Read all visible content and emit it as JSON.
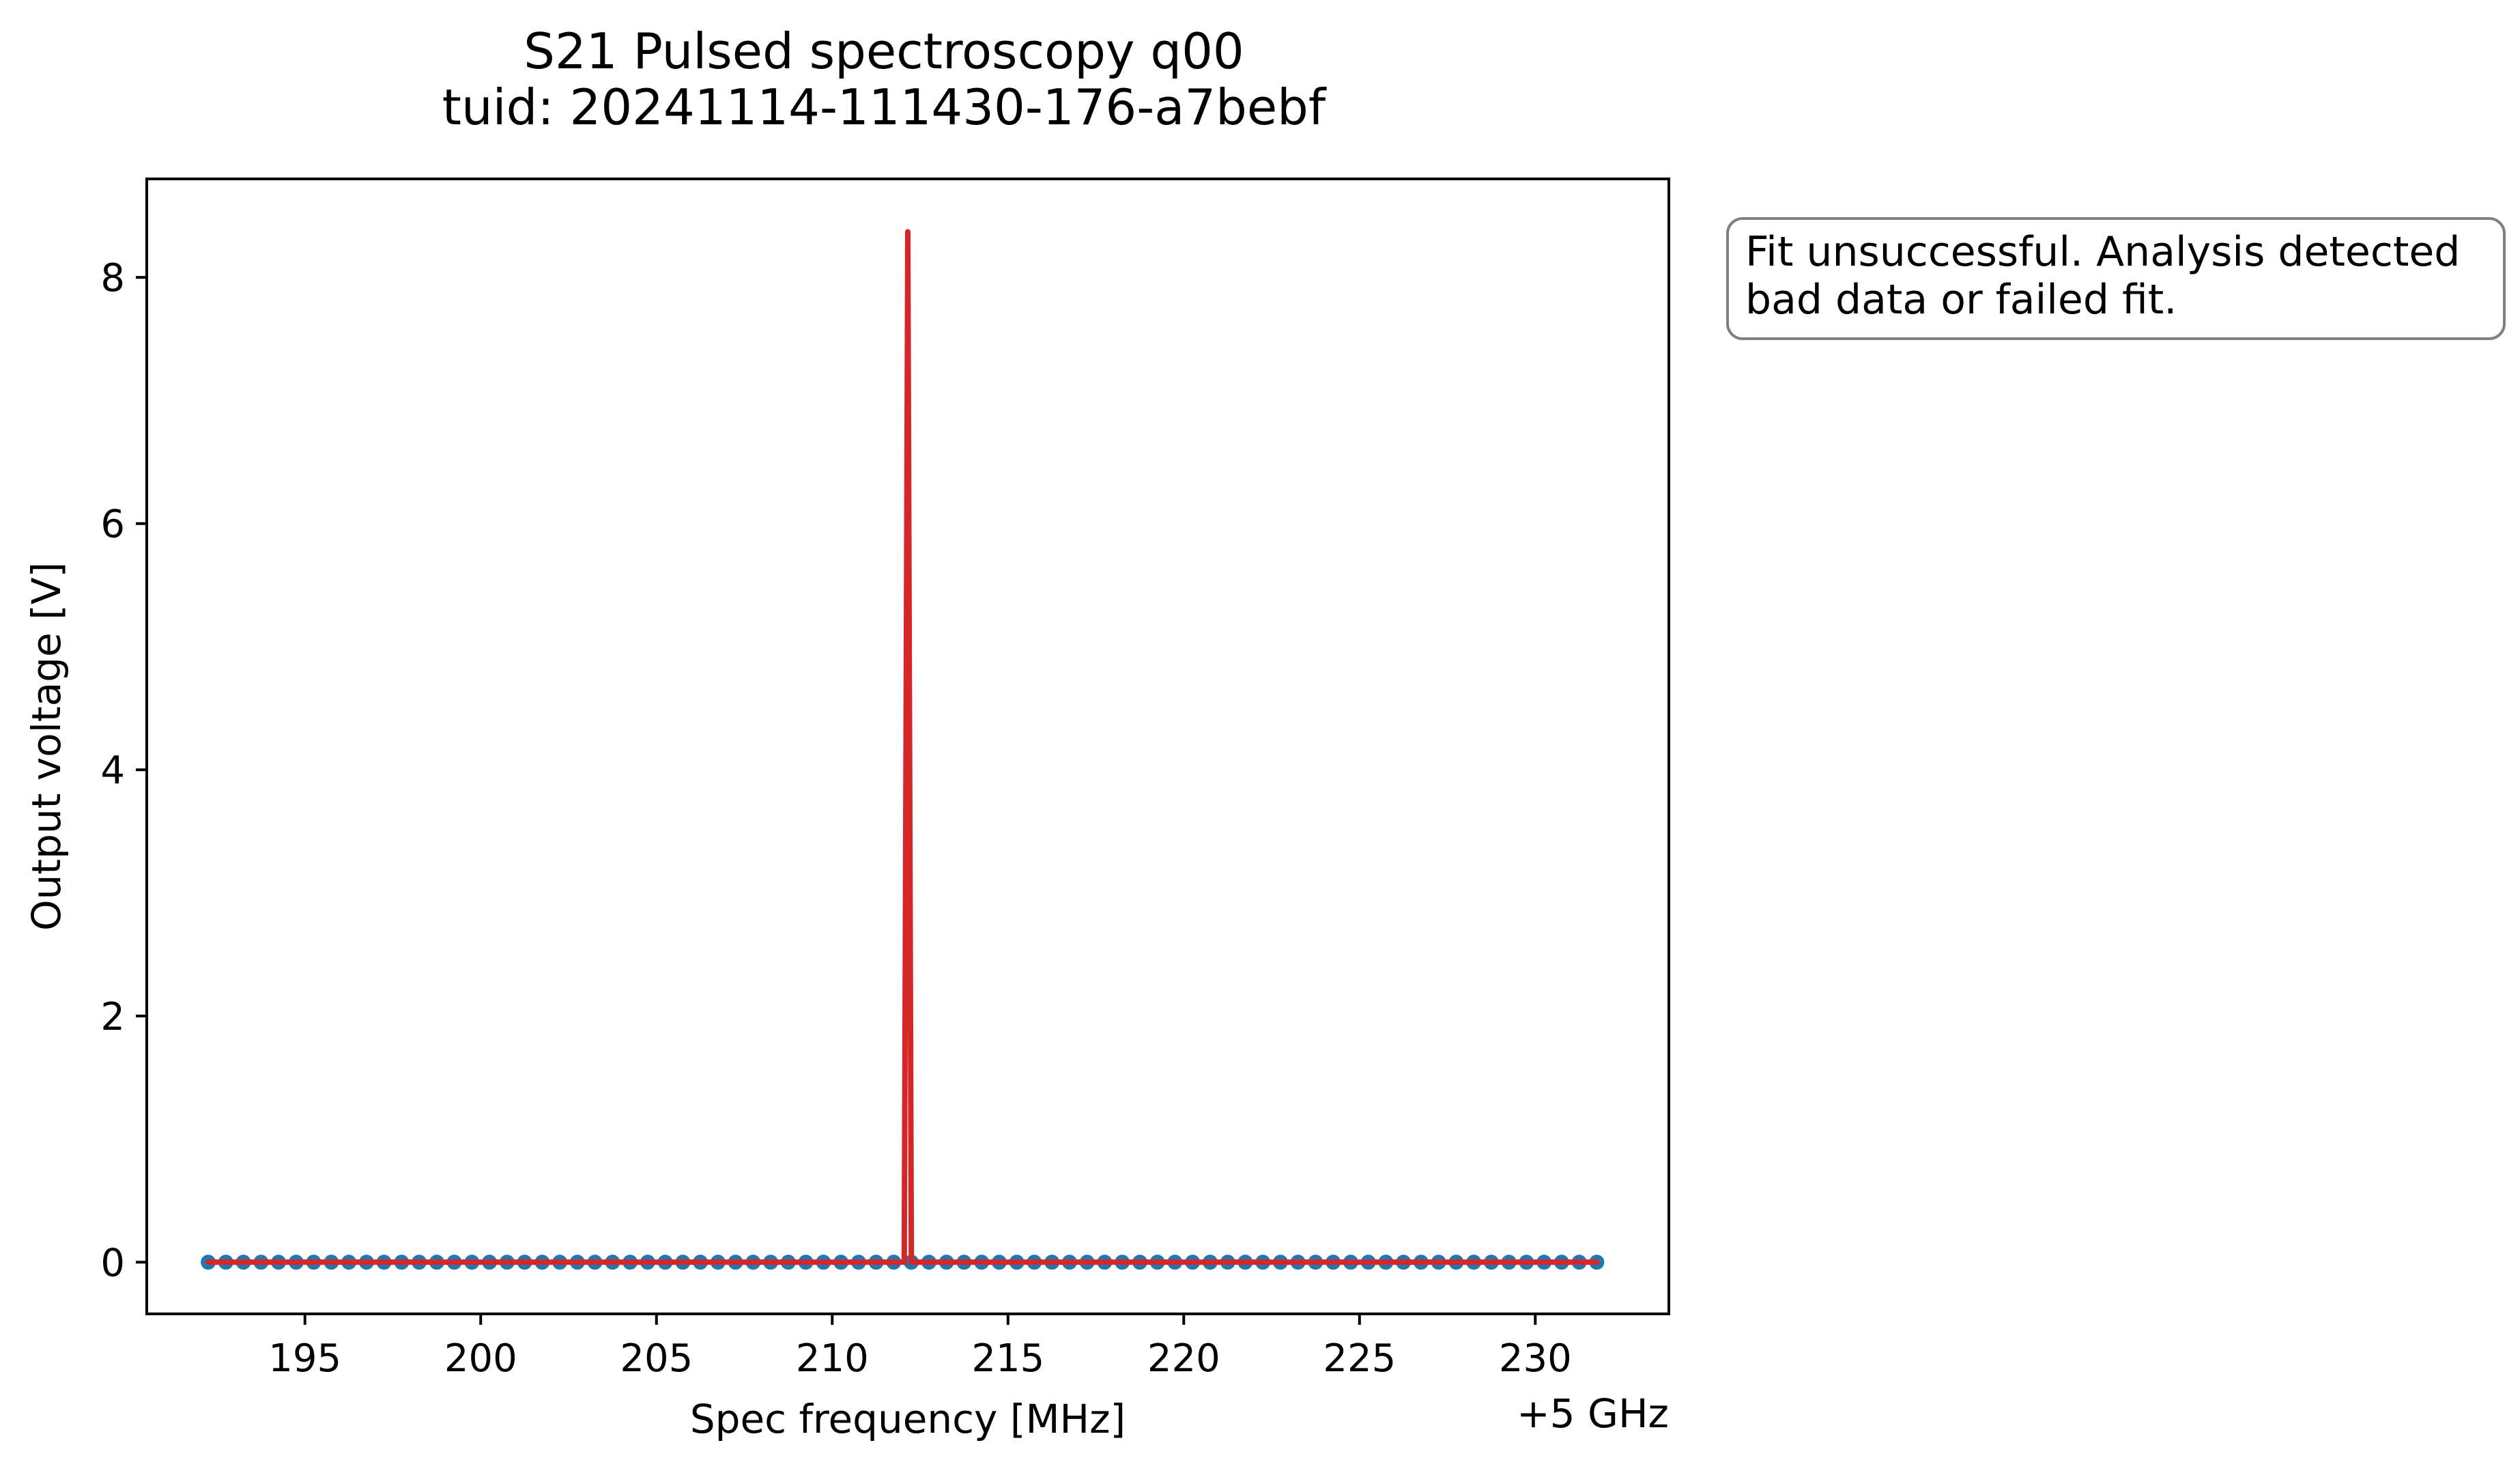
{
  "chart_data": {
    "type": "line",
    "title": "S21 Pulsed spectroscopy q00",
    "subtitle": "tuid: 20241114-111430-176-a7bebf",
    "xlabel": "Spec frequency [MHz]",
    "ylabel": "Output voltage [V]",
    "x_offset_label": "+5 GHz",
    "xlim": [
      190.5,
      233.8
    ],
    "ylim": [
      -0.42,
      8.8
    ],
    "x_ticks": [
      195,
      200,
      205,
      210,
      215,
      220,
      225,
      230
    ],
    "y_ticks": [
      0,
      2,
      4,
      6,
      8
    ],
    "grid": false,
    "annotation": {
      "lines": [
        "Fit unsuccessful. Analysis detected",
        "bad data or failed fit."
      ]
    },
    "series": [
      {
        "color": "#1f77b4",
        "marker": "circle",
        "x": [
          192.25,
          192.75,
          193.25,
          193.75,
          194.25,
          194.75,
          195.25,
          195.75,
          196.25,
          196.75,
          197.25,
          197.75,
          198.25,
          198.75,
          199.25,
          199.75,
          200.25,
          200.75,
          201.25,
          201.75,
          202.25,
          202.75,
          203.25,
          203.75,
          204.25,
          204.75,
          205.25,
          205.75,
          206.25,
          206.75,
          207.25,
          207.75,
          208.25,
          208.75,
          209.25,
          209.75,
          210.25,
          210.75,
          211.25,
          211.75,
          212.25,
          212.75,
          213.25,
          213.75,
          214.25,
          214.75,
          215.25,
          215.75,
          216.25,
          216.75,
          217.25,
          217.75,
          218.25,
          218.75,
          219.25,
          219.75,
          220.25,
          220.75,
          221.25,
          221.75,
          222.25,
          222.75,
          223.25,
          223.75,
          224.25,
          224.75,
          225.25,
          225.75,
          226.25,
          226.75,
          227.25,
          227.75,
          228.25,
          228.75,
          229.25,
          229.75,
          230.25,
          230.75,
          231.25,
          231.75
        ],
        "y": [
          0,
          0,
          0,
          0,
          0,
          0,
          0,
          0,
          0,
          0,
          0,
          0,
          0,
          0,
          0,
          0,
          0,
          0,
          0,
          0,
          0,
          0,
          0,
          0,
          0,
          0,
          0,
          0,
          0,
          0,
          0,
          0,
          0,
          0,
          0,
          0,
          0,
          0,
          0,
          0,
          0,
          0,
          0,
          0,
          0,
          0,
          0,
          0,
          0,
          0,
          0,
          0,
          0,
          0,
          0,
          0,
          0,
          0,
          0,
          0,
          0,
          0,
          0,
          0,
          0,
          0,
          0,
          0,
          0,
          0,
          0,
          0,
          0,
          0,
          0,
          0,
          0,
          0,
          0,
          0
        ]
      },
      {
        "color": "#d62728",
        "marker": "none",
        "x": [
          192.25,
          212.05,
          212.15,
          212.25,
          231.75
        ],
        "y": [
          0,
          0,
          8.37,
          0,
          0
        ]
      }
    ]
  }
}
